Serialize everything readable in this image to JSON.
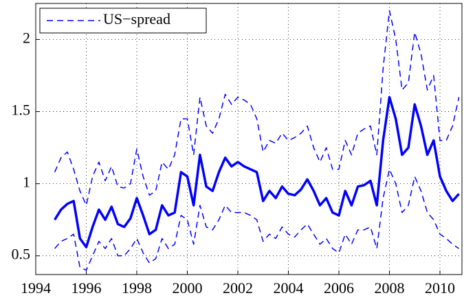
{
  "chart_data": {
    "type": "line",
    "x": [
      1994.75,
      1995.0,
      1995.25,
      1995.5,
      1995.75,
      1996.0,
      1996.25,
      1996.5,
      1996.75,
      1997.0,
      1997.25,
      1997.5,
      1997.75,
      1998.0,
      1998.25,
      1998.5,
      1998.75,
      1999.0,
      1999.25,
      1999.5,
      1999.75,
      2000.0,
      2000.25,
      2000.5,
      2000.75,
      2001.0,
      2001.25,
      2001.5,
      2001.75,
      2002.0,
      2002.25,
      2002.5,
      2002.75,
      2003.0,
      2003.25,
      2003.5,
      2003.75,
      2004.0,
      2004.25,
      2004.5,
      2004.75,
      2005.0,
      2005.25,
      2005.5,
      2005.75,
      2006.0,
      2006.25,
      2006.5,
      2006.75,
      2007.0,
      2007.25,
      2007.5,
      2007.75,
      2008.0,
      2008.25,
      2008.5,
      2008.75,
      2009.0,
      2009.25,
      2009.5,
      2009.75,
      2010.0,
      2010.25,
      2010.5,
      2010.75
    ],
    "series": [
      {
        "name": "US−spread",
        "color": "#0000ff",
        "dash": "dashed",
        "width": 1.5,
        "values": [
          1.08,
          1.18,
          1.22,
          1.1,
          0.95,
          0.85,
          1.05,
          1.15,
          1.02,
          1.12,
          0.98,
          0.97,
          1.0,
          1.24,
          1.05,
          0.92,
          0.95,
          1.15,
          1.1,
          1.2,
          1.45,
          1.45,
          1.2,
          1.6,
          1.4,
          1.35,
          1.45,
          1.62,
          1.55,
          1.6,
          1.58,
          1.55,
          1.45,
          1.22,
          1.3,
          1.28,
          1.35,
          1.3,
          1.32,
          1.35,
          1.4,
          1.25,
          1.15,
          1.25,
          1.1,
          1.1,
          1.3,
          1.2,
          1.35,
          1.38,
          1.4,
          1.2,
          1.8,
          2.2,
          2.0,
          1.65,
          1.7,
          2.05,
          1.9,
          1.65,
          1.75,
          1.3,
          1.3,
          1.4,
          1.6
        ]
      },
      {
        "color": "#0000ff",
        "dash": "solid",
        "width": 3.5,
        "values": [
          0.75,
          0.82,
          0.86,
          0.88,
          0.62,
          0.56,
          0.7,
          0.82,
          0.75,
          0.84,
          0.72,
          0.7,
          0.76,
          0.9,
          0.78,
          0.65,
          0.68,
          0.85,
          0.78,
          0.8,
          1.08,
          1.05,
          0.85,
          1.2,
          0.98,
          0.95,
          1.08,
          1.18,
          1.12,
          1.15,
          1.12,
          1.1,
          1.08,
          0.88,
          0.95,
          0.9,
          0.98,
          0.93,
          0.92,
          0.96,
          1.03,
          0.95,
          0.85,
          0.9,
          0.8,
          0.78,
          0.95,
          0.85,
          0.98,
          0.99,
          1.02,
          0.85,
          1.3,
          1.6,
          1.45,
          1.2,
          1.25,
          1.55,
          1.4,
          1.2,
          1.3,
          1.05,
          0.95,
          0.88,
          0.93
        ]
      },
      {
        "color": "#0000ff",
        "dash": "dashed",
        "width": 1.5,
        "values": [
          0.55,
          0.6,
          0.62,
          0.65,
          0.42,
          0.4,
          0.5,
          0.6,
          0.55,
          0.62,
          0.5,
          0.5,
          0.55,
          0.62,
          0.52,
          0.45,
          0.48,
          0.62,
          0.55,
          0.58,
          0.78,
          0.75,
          0.58,
          0.85,
          0.7,
          0.68,
          0.75,
          0.85,
          0.8,
          0.8,
          0.8,
          0.78,
          0.75,
          0.6,
          0.65,
          0.62,
          0.7,
          0.65,
          0.63,
          0.68,
          0.72,
          0.65,
          0.58,
          0.62,
          0.55,
          0.52,
          0.65,
          0.58,
          0.68,
          0.68,
          0.7,
          0.55,
          0.9,
          1.1,
          1.0,
          0.8,
          0.85,
          1.05,
          0.95,
          0.8,
          0.75,
          0.65,
          0.62,
          0.58,
          0.55
        ]
      }
    ],
    "xlim": [
      1994,
      2010.87
    ],
    "xticks": [
      1994,
      1996,
      1998,
      2000,
      2002,
      2004,
      2006,
      2008,
      2010
    ],
    "ylim": [
      0.37,
      2.25
    ],
    "yticks": [
      0.5,
      1,
      1.5,
      2
    ],
    "grid": true,
    "legend": "top-left"
  }
}
